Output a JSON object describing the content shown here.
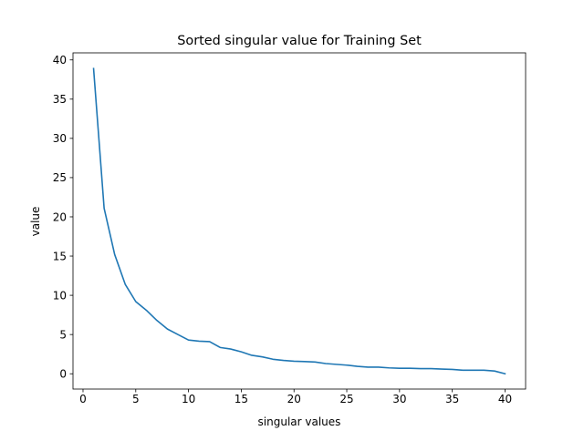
{
  "chart_data": {
    "type": "line",
    "title": "Sorted singular value for Training Set",
    "xlabel": "singular values",
    "ylabel": "value",
    "xlim": [
      -0.95,
      41.95
    ],
    "ylim": [
      -1.95,
      40.9
    ],
    "xticks": [
      0,
      5,
      10,
      15,
      20,
      25,
      30,
      35,
      40
    ],
    "yticks": [
      0,
      5,
      10,
      15,
      20,
      25,
      30,
      35,
      40
    ],
    "grid": false,
    "legend": "none",
    "series": [
      {
        "color": "#1f77b4",
        "x": [
          1,
          2,
          3,
          4,
          5,
          6,
          7,
          8,
          9,
          10,
          11,
          12,
          13,
          14,
          15,
          16,
          17,
          18,
          19,
          20,
          21,
          22,
          23,
          24,
          25,
          26,
          27,
          28,
          29,
          30,
          31,
          32,
          33,
          34,
          35,
          36,
          37,
          38,
          39,
          40
        ],
        "values": [
          38.9,
          21.1,
          15.2,
          11.4,
          9.2,
          8.1,
          6.8,
          5.7,
          5.0,
          4.3,
          4.15,
          4.1,
          3.35,
          3.15,
          2.8,
          2.35,
          2.15,
          1.85,
          1.7,
          1.6,
          1.55,
          1.5,
          1.3,
          1.2,
          1.1,
          0.95,
          0.85,
          0.85,
          0.75,
          0.7,
          0.7,
          0.65,
          0.65,
          0.6,
          0.55,
          0.45,
          0.45,
          0.45,
          0.35,
          0.0
        ]
      }
    ]
  }
}
